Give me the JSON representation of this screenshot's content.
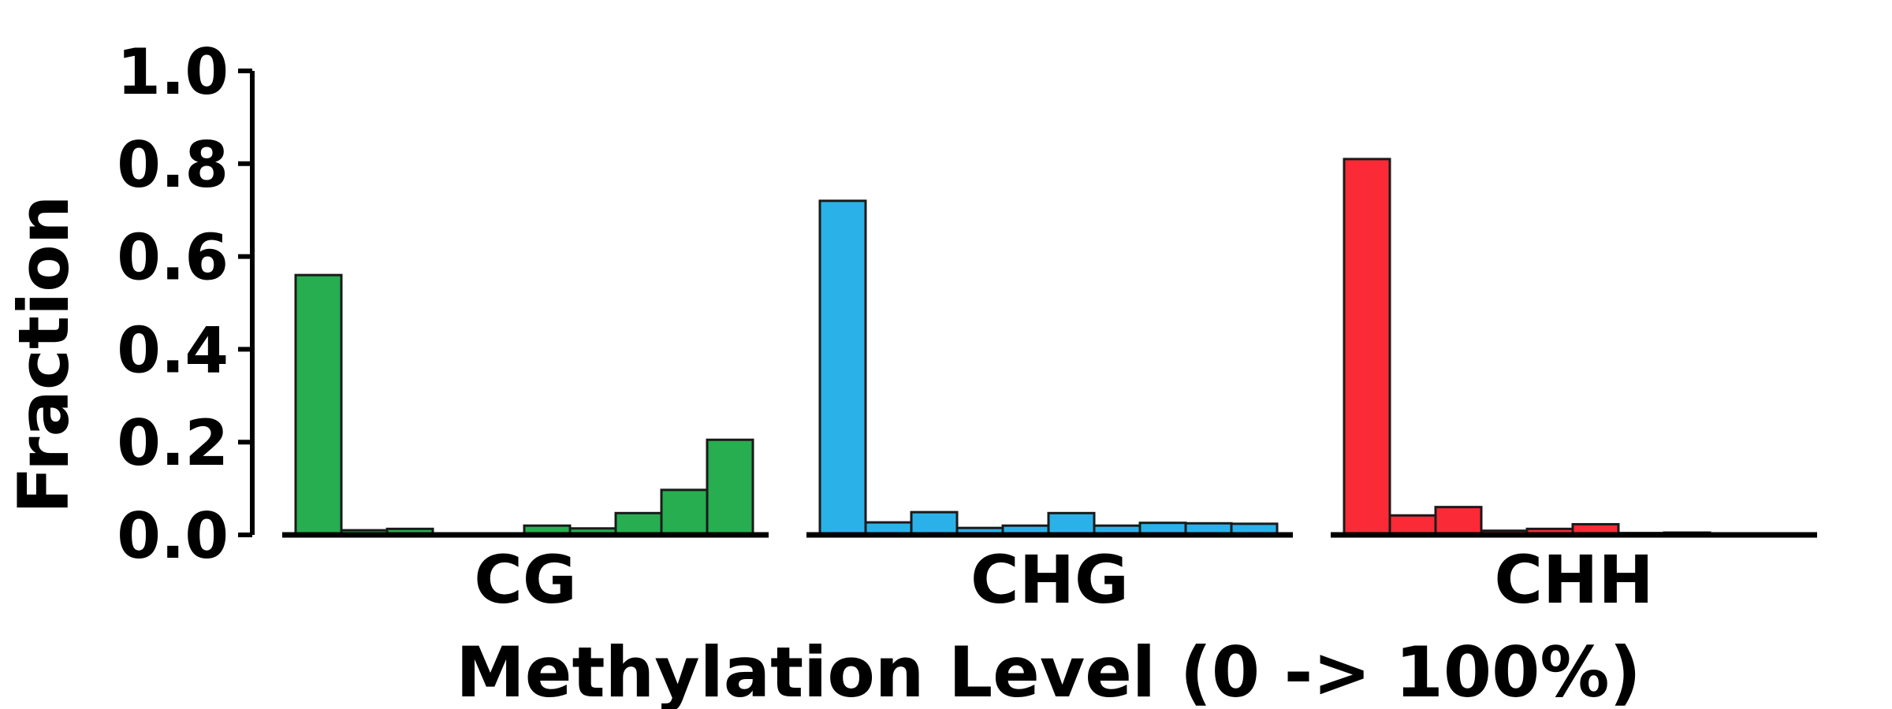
{
  "chart_data": {
    "type": "bar",
    "xlabel": "Methylation Level (0 -> 100%)",
    "ylabel": "Fraction",
    "ylim": [
      0,
      1.0
    ],
    "yticks": [
      "0.0",
      "0.2",
      "0.4",
      "0.6",
      "0.8",
      "1.0"
    ],
    "grid": false,
    "bins_per_group": 10,
    "series": [
      {
        "name": "CG",
        "color": "#27ae50",
        "values": [
          0.56,
          0.01,
          0.013,
          0.0,
          0.002,
          0.02,
          0.014,
          0.047,
          0.097,
          0.205
        ]
      },
      {
        "name": "CHG",
        "color": "#2ab2e8",
        "values": [
          0.72,
          0.027,
          0.049,
          0.015,
          0.02,
          0.047,
          0.02,
          0.026,
          0.025,
          0.024
        ]
      },
      {
        "name": "CHH",
        "color": "#fb2a37",
        "values": [
          0.81,
          0.042,
          0.06,
          0.009,
          0.013,
          0.023,
          0.004,
          0.005,
          0.003,
          0.002
        ]
      }
    ]
  }
}
